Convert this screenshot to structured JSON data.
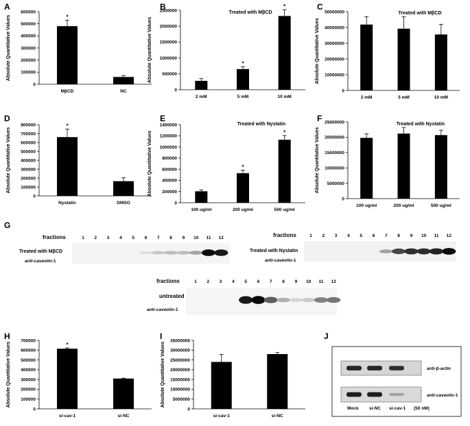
{
  "panels": {
    "A": {
      "letter": "A",
      "title": "",
      "ylabel": "Absolute Quantitative Values"
    },
    "B": {
      "letter": "B",
      "title": "Treated with MβCD",
      "ylabel": "Absolute Quantitative Values"
    },
    "C": {
      "letter": "C",
      "title": "Treated with MβCD",
      "ylabel": "Absolute Quantitative Values"
    },
    "D": {
      "letter": "D",
      "title": "",
      "ylabel": "Absolute Quantitative Values"
    },
    "E": {
      "letter": "E",
      "title": "Treated with Nystatin",
      "ylabel": "Absolute Quantitative Values"
    },
    "F": {
      "letter": "F",
      "title": "Treated with Nystatin",
      "ylabel": "Absolute Quantitative Values"
    },
    "G": {
      "letter": "G"
    },
    "H": {
      "letter": "H",
      "title": "",
      "ylabel": "Absolute Quantitative Values"
    },
    "I": {
      "letter": "I",
      "title": "",
      "ylabel": "Absolute Quantitative Values"
    },
    "J": {
      "letter": "J"
    }
  },
  "blots": {
    "mbcd": {
      "fractions_label": "fractions",
      "treatment_label": "Treated with MβCD",
      "antibody_label": "anti-caveolin-1",
      "fractions": [
        "1",
        "2",
        "3",
        "4",
        "5",
        "6",
        "7",
        "8",
        "9",
        "10",
        "11",
        "12"
      ],
      "band_intensity": [
        0,
        0,
        0,
        0,
        0,
        0.05,
        0.15,
        0.2,
        0.2,
        0.3,
        0.95,
        0.9
      ]
    },
    "nystatin": {
      "fractions_label": "fractions",
      "treatment_label": "Treated with Nystatin",
      "antibody_label": "anti-caveolin-1",
      "fractions": [
        "1",
        "2",
        "3",
        "4",
        "5",
        "6",
        "7",
        "8",
        "9",
        "10",
        "11",
        "12"
      ],
      "band_intensity": [
        0,
        0,
        0,
        0,
        0,
        0,
        0.3,
        0.7,
        0.8,
        0.8,
        0.85,
        0.95
      ]
    },
    "untreated": {
      "fractions_label": "fractions",
      "treatment_label": "untreated",
      "antibody_label": "anti-caveolin-1",
      "fractions": [
        "1",
        "2",
        "3",
        "4",
        "5",
        "6",
        "7",
        "8",
        "9",
        "10",
        "11",
        "12"
      ],
      "band_intensity": [
        0,
        0,
        0,
        0,
        0.9,
        0.95,
        0.6,
        0.25,
        0.1,
        0.15,
        0.45,
        0.5
      ]
    }
  },
  "western_J": {
    "lanes": [
      "Mock",
      "si-NC",
      "si-cav-1"
    ],
    "concentration_label": "(50 nM)",
    "rows": [
      {
        "label": "anti-β-actin",
        "band_intensity": [
          0.9,
          0.9,
          0.85
        ]
      },
      {
        "label": "anti-caveolin-1",
        "band_intensity": [
          0.95,
          0.95,
          0.2
        ]
      }
    ]
  },
  "chart_data": [
    {
      "panel": "A",
      "type": "bar",
      "title": "",
      "xlabel": "",
      "ylabel": "Absolute Quantitative Values",
      "categories": [
        "MβCD",
        "NC"
      ],
      "values": [
        480000,
        60000
      ],
      "errors": [
        50000,
        12000
      ],
      "significance": [
        "*",
        ""
      ],
      "ylim": [
        0,
        600000
      ],
      "yticks": [
        "0",
        "100000",
        "200000",
        "300000",
        "400000",
        "500000",
        "600000"
      ]
    },
    {
      "panel": "B",
      "type": "bar",
      "title": "Treated with MβCD",
      "xlabel": "",
      "ylabel": "Absolute Quantitative Values",
      "categories": [
        "2 mM",
        "5 mM",
        "10 mM"
      ],
      "values": [
        280000,
        650000,
        2320000
      ],
      "errors": [
        70000,
        70000,
        200000
      ],
      "significance": [
        "",
        "*",
        "*"
      ],
      "ylim": [
        0,
        2500000
      ],
      "yticks": [
        "0",
        "500000",
        "1000000",
        "1500000",
        "2000000",
        "2500000"
      ]
    },
    {
      "panel": "C",
      "type": "bar",
      "title": "Treated with MβCD",
      "xlabel": "",
      "ylabel": "Absolute Quantitative Values",
      "categories": [
        "2 mM",
        "5 mM",
        "10 mM"
      ],
      "values": [
        41800000,
        39200000,
        35500000
      ],
      "errors": [
        5000000,
        7500000,
        6500000
      ],
      "significance": [
        "",
        "",
        ""
      ],
      "ylim": [
        0,
        50000000
      ],
      "yticks": [
        "0",
        "10000000",
        "20000000",
        "30000000",
        "40000000",
        "50000000"
      ]
    },
    {
      "panel": "D",
      "type": "bar",
      "title": "",
      "xlabel": "",
      "ylabel": "Absolute Quantitative Values",
      "categories": [
        "Nystatin",
        "DMSO"
      ],
      "values": [
        660000,
        165000
      ],
      "errors": [
        90000,
        40000
      ],
      "significance": [
        "*",
        ""
      ],
      "ylim": [
        0,
        800000
      ],
      "yticks": [
        "0",
        "100000",
        "200000",
        "300000",
        "400000",
        "500000",
        "600000",
        "700000",
        "800000"
      ]
    },
    {
      "panel": "E",
      "type": "bar",
      "title": "Treated with Nystatin",
      "xlabel": "",
      "ylabel": "Absolute Quantitative Values",
      "categories": [
        "100 ug/ml",
        "200 ug/ml",
        "500 ug/ml"
      ],
      "values": [
        205000,
        530000,
        1130000
      ],
      "errors": [
        25000,
        55000,
        75000
      ],
      "significance": [
        "",
        "*",
        "*"
      ],
      "ylim": [
        0,
        1400000
      ],
      "yticks": [
        "0",
        "200000",
        "400000",
        "600000",
        "800000",
        "1000000",
        "1200000",
        "1400000"
      ]
    },
    {
      "panel": "F",
      "type": "bar",
      "title": "Treated with Nystatin",
      "xlabel": "",
      "ylabel": "Absolute Quantitative Values",
      "categories": [
        "100 ug/ml",
        "200 ug/ml",
        "500 ug/ml"
      ],
      "values": [
        19800000,
        21200000,
        20700000
      ],
      "errors": [
        1300000,
        2000000,
        1600000
      ],
      "significance": [
        "",
        "",
        ""
      ],
      "ylim": [
        0,
        25000000
      ],
      "yticks": [
        "0",
        "5000000",
        "10000000",
        "15000000",
        "20000000",
        "25000000"
      ]
    },
    {
      "panel": "H",
      "type": "bar",
      "title": "",
      "xlabel": "",
      "ylabel": "Absolute Quantitative Values",
      "categories": [
        "si-cav-1",
        "si-NC"
      ],
      "values": [
        615000,
        310000
      ],
      "errors": [
        8000,
        4000
      ],
      "significance": [
        "*",
        ""
      ],
      "ylim": [
        0,
        700000
      ],
      "yticks": [
        "0",
        "100000",
        "200000",
        "300000",
        "400000",
        "500000",
        "600000",
        "700000"
      ]
    },
    {
      "panel": "I",
      "type": "bar",
      "title": "",
      "xlabel": "",
      "ylabel": "Absolute Quantitative Values",
      "categories": [
        "si-cav-1",
        "si-NC"
      ],
      "values": [
        24000000,
        28000000
      ],
      "errors": [
        3800000,
        800000
      ],
      "significance": [
        "",
        ""
      ],
      "ylim": [
        0,
        35000000
      ],
      "yticks": [
        "0",
        "5000000",
        "10000000",
        "15000000",
        "20000000",
        "25000000",
        "30000000",
        "35000000"
      ]
    }
  ]
}
